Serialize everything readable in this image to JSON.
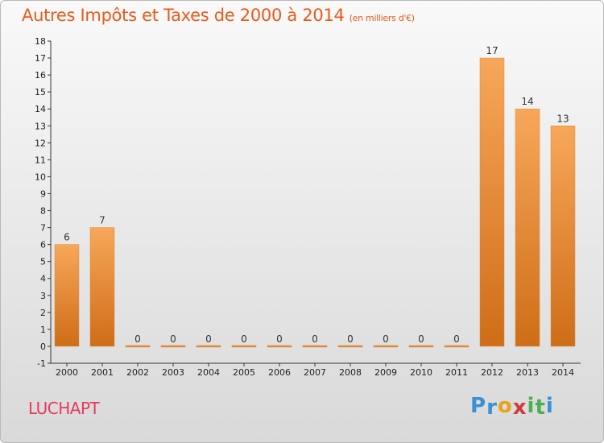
{
  "header": {
    "title": "Autres Impôts et Taxes de 2000 à 2014",
    "subtitle": "(en milliers d'€)"
  },
  "footer": {
    "commune": "LUCHAPT",
    "logo_letters": [
      "P",
      "r",
      "o",
      "x",
      "i",
      "t",
      "i"
    ],
    "logo_colors": [
      "#3a8fd6",
      "#3a8fd6",
      "#e9a21a",
      "#d03a3a",
      "#4caf50",
      "#4caf50",
      "#3a8fd6"
    ]
  },
  "chart_data": {
    "type": "bar",
    "title": "Autres Impôts et Taxes de 2000 à 2014",
    "subtitle": "(en milliers d'€)",
    "categories": [
      "2000",
      "2001",
      "2002",
      "2003",
      "2004",
      "2005",
      "2006",
      "2007",
      "2008",
      "2009",
      "2010",
      "2011",
      "2012",
      "2013",
      "2014"
    ],
    "values": [
      6,
      7,
      0,
      0,
      0,
      0,
      0,
      0,
      0,
      0,
      0,
      0,
      17,
      14,
      13
    ],
    "data_labels": [
      "6",
      "7",
      "0",
      "0",
      "0",
      "0",
      "0",
      "0",
      "0",
      "0",
      "0",
      "0",
      "17",
      "14",
      "13"
    ],
    "ylim": [
      -1,
      18
    ],
    "yticks": [
      "-1",
      "0",
      "1",
      "2",
      "3",
      "4",
      "5",
      "6",
      "7",
      "8",
      "9",
      "10",
      "11",
      "12",
      "13",
      "14",
      "15",
      "16",
      "17",
      "18"
    ],
    "grid": false,
    "legend": "none",
    "colors": {
      "bar_top": "#f7a75a",
      "bar_bottom": "#cf6d17",
      "axis": "#333333"
    }
  }
}
